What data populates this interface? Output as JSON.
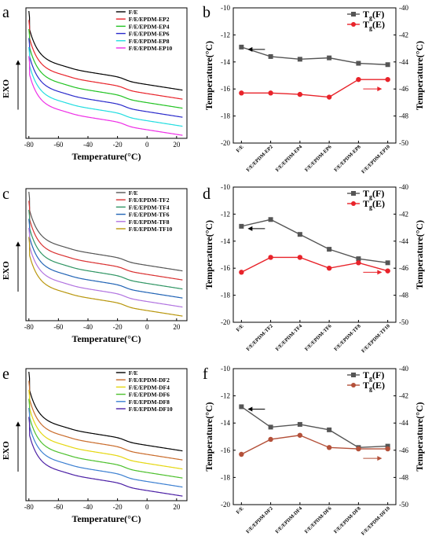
{
  "chart_data": [
    {
      "panel": "a",
      "type": "line",
      "xlabel": "Temperature(°C)",
      "ylabel": "EXO",
      "xlim": [
        -80,
        25
      ],
      "xticks": [
        "-80",
        "-60",
        "-40",
        "-20",
        "0",
        "20"
      ],
      "series": [
        {
          "name": "F/E",
          "color": "#000000",
          "offset": 0
        },
        {
          "name": "F/E/EPDM-EP2",
          "color": "#e8232a",
          "offset": 1
        },
        {
          "name": "F/E/EPDM-EP4",
          "color": "#22c322",
          "offset": 2
        },
        {
          "name": "F/E/EPDM-EP6",
          "color": "#2a2acb",
          "offset": 3
        },
        {
          "name": "F/E/EPDM-EP8",
          "color": "#22dde0",
          "offset": 4
        },
        {
          "name": "F/E/EPDM-EP10",
          "color": "#ee2ee6",
          "offset": 5
        }
      ]
    },
    {
      "panel": "b",
      "type": "line",
      "ylabel": "Temperature(°C)",
      "ylim": [
        -20,
        -10
      ],
      "yticks": [
        "-10",
        "-12",
        "-14",
        "-16",
        "-18",
        "-20"
      ],
      "y2lim": [
        -50,
        -40
      ],
      "y2ticks": [
        "-40",
        "-42",
        "-44",
        "-46",
        "-48",
        "-50"
      ],
      "categories": [
        "F/E",
        "F/E/EPDM-EP2",
        "F/E/EPDM-EP4",
        "F/E/EPDM-EP6",
        "F/E/EPDM-EP8",
        "F/E/EPDM-EP10"
      ],
      "series": [
        {
          "name": "Tg(F)",
          "axis": "left",
          "color": "#555555",
          "marker": "square",
          "values": [
            -12.9,
            -13.6,
            -13.8,
            -13.7,
            -14.1,
            -14.2
          ]
        },
        {
          "name": "Tg(E)",
          "axis": "right",
          "color": "#e8232a",
          "marker": "circle",
          "values": [
            -46.3,
            -46.3,
            -46.4,
            -46.6,
            -45.3,
            -45.3
          ]
        }
      ]
    },
    {
      "panel": "c",
      "type": "line",
      "xlabel": "Temperature(°C)",
      "ylabel": "EXO",
      "xlim": [
        -80,
        25
      ],
      "xticks": [
        "-80",
        "-60",
        "-40",
        "-20",
        "0",
        "20"
      ],
      "series": [
        {
          "name": "F/E",
          "color": "#555555",
          "offset": 0
        },
        {
          "name": "F/E/EPDM-TF2",
          "color": "#d93030",
          "offset": 1
        },
        {
          "name": "F/E/EPDM-TF4",
          "color": "#2f9563",
          "offset": 2
        },
        {
          "name": "F/E/EPDM-TF6",
          "color": "#2063b5",
          "offset": 3
        },
        {
          "name": "F/E/EPDM-TF8",
          "color": "#b173e0",
          "offset": 4
        },
        {
          "name": "F/E/EPDM-TF10",
          "color": "#b8960c",
          "offset": 5
        }
      ]
    },
    {
      "panel": "d",
      "type": "line",
      "ylabel": "Temperature(°C)",
      "ylim": [
        -20,
        -10
      ],
      "yticks": [
        "-10",
        "-12",
        "-14",
        "-16",
        "-18",
        "-20"
      ],
      "y2lim": [
        -50,
        -40
      ],
      "y2ticks": [
        "-40",
        "-42",
        "-44",
        "-46",
        "-48",
        "-50"
      ],
      "categories": [
        "F/E",
        "F/E/EPDM-TF2",
        "F/E/EPDM-TF4",
        "F/E/EPDM-TF6",
        "F/E/EPDM-TF8",
        "F/E/EPDM-TF10"
      ],
      "series": [
        {
          "name": "Tg(F)",
          "axis": "left",
          "color": "#555555",
          "marker": "square",
          "values": [
            -12.9,
            -12.4,
            -13.5,
            -14.6,
            -15.3,
            -15.6
          ]
        },
        {
          "name": "Tg(E)",
          "axis": "right",
          "color": "#e8232a",
          "marker": "circle",
          "values": [
            -46.3,
            -45.2,
            -45.2,
            -46.0,
            -45.6,
            -46.2
          ]
        }
      ]
    },
    {
      "panel": "e",
      "type": "line",
      "xlabel": "Temperature(°C)",
      "ylabel": "EXO",
      "xlim": [
        -80,
        25
      ],
      "xticks": [
        "-80",
        "-60",
        "-40",
        "-20",
        "0",
        "20"
      ],
      "series": [
        {
          "name": "F/E",
          "color": "#000000",
          "offset": 0
        },
        {
          "name": "F/E/EPDM-DF2",
          "color": "#c96b2a",
          "offset": 1
        },
        {
          "name": "F/E/EPDM-DF4",
          "color": "#e5d710",
          "offset": 2
        },
        {
          "name": "F/E/EPDM-DF6",
          "color": "#4cc02c",
          "offset": 3
        },
        {
          "name": "F/E/EPDM-DF8",
          "color": "#3b7fd1",
          "offset": 4
        },
        {
          "name": "F/E/EPDM-DF10",
          "color": "#4b1fa5",
          "offset": 5
        }
      ]
    },
    {
      "panel": "f",
      "type": "line",
      "ylabel": "Temperature(°C)",
      "ylim": [
        -20,
        -10
      ],
      "yticks": [
        "-10",
        "-12",
        "-14",
        "-16",
        "-18",
        "-20"
      ],
      "y2lim": [
        -50,
        -40
      ],
      "y2ticks": [
        "-40",
        "-42",
        "-44",
        "-46",
        "-48",
        "-50"
      ],
      "categories": [
        "F/E",
        "F/E/EPDM-DF2",
        "F/E/EPDM-DF4",
        "F/E/EPDM-DF6",
        "F/E/EPDM-DF8",
        "F/E/EPDM-DF10"
      ],
      "series": [
        {
          "name": "Tg(F)",
          "axis": "left",
          "color": "#555555",
          "marker": "square",
          "values": [
            -12.8,
            -14.3,
            -14.1,
            -14.5,
            -15.8,
            -15.7
          ]
        },
        {
          "name": "Tg(E)",
          "axis": "right",
          "color": "#b4513a",
          "marker": "circle",
          "values": [
            -46.3,
            -45.2,
            -44.9,
            -45.8,
            -45.9,
            -45.9
          ]
        }
      ]
    }
  ]
}
